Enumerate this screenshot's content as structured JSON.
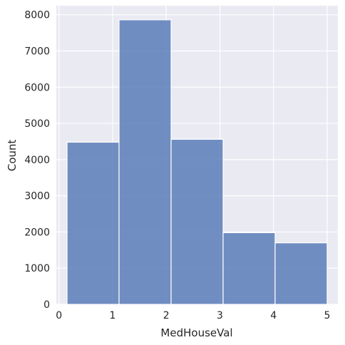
{
  "chart_data": {
    "type": "bar",
    "subtype": "histogram",
    "xlabel": "MedHouseVal",
    "ylabel": "Count",
    "bins": [
      {
        "x0": 0.15,
        "x1": 1.12,
        "value": 4480
      },
      {
        "x0": 1.12,
        "x1": 2.09,
        "value": 7860
      },
      {
        "x0": 2.09,
        "x1": 3.06,
        "value": 4560
      },
      {
        "x0": 3.06,
        "x1": 4.03,
        "value": 1980
      },
      {
        "x0": 4.03,
        "x1": 5.0,
        "value": 1700
      }
    ],
    "xlim": [
      -0.05,
      5.2
    ],
    "ylim": [
      0,
      8250
    ],
    "xticks": [
      0,
      1,
      2,
      3,
      4,
      5
    ],
    "xtick_labels": [
      "0",
      "1",
      "2",
      "3",
      "4",
      "5"
    ],
    "yticks": [
      0,
      1000,
      2000,
      3000,
      4000,
      5000,
      6000,
      7000,
      8000
    ],
    "ytick_labels": [
      "0",
      "1000",
      "2000",
      "3000",
      "4000",
      "5000",
      "6000",
      "7000",
      "8000"
    ],
    "grid": true,
    "style": {
      "background": "#EAEAF2",
      "grid_color": "#FFFFFF",
      "bar_fill": "#5B7DB8",
      "bar_edge": "#FFFFFF"
    }
  }
}
